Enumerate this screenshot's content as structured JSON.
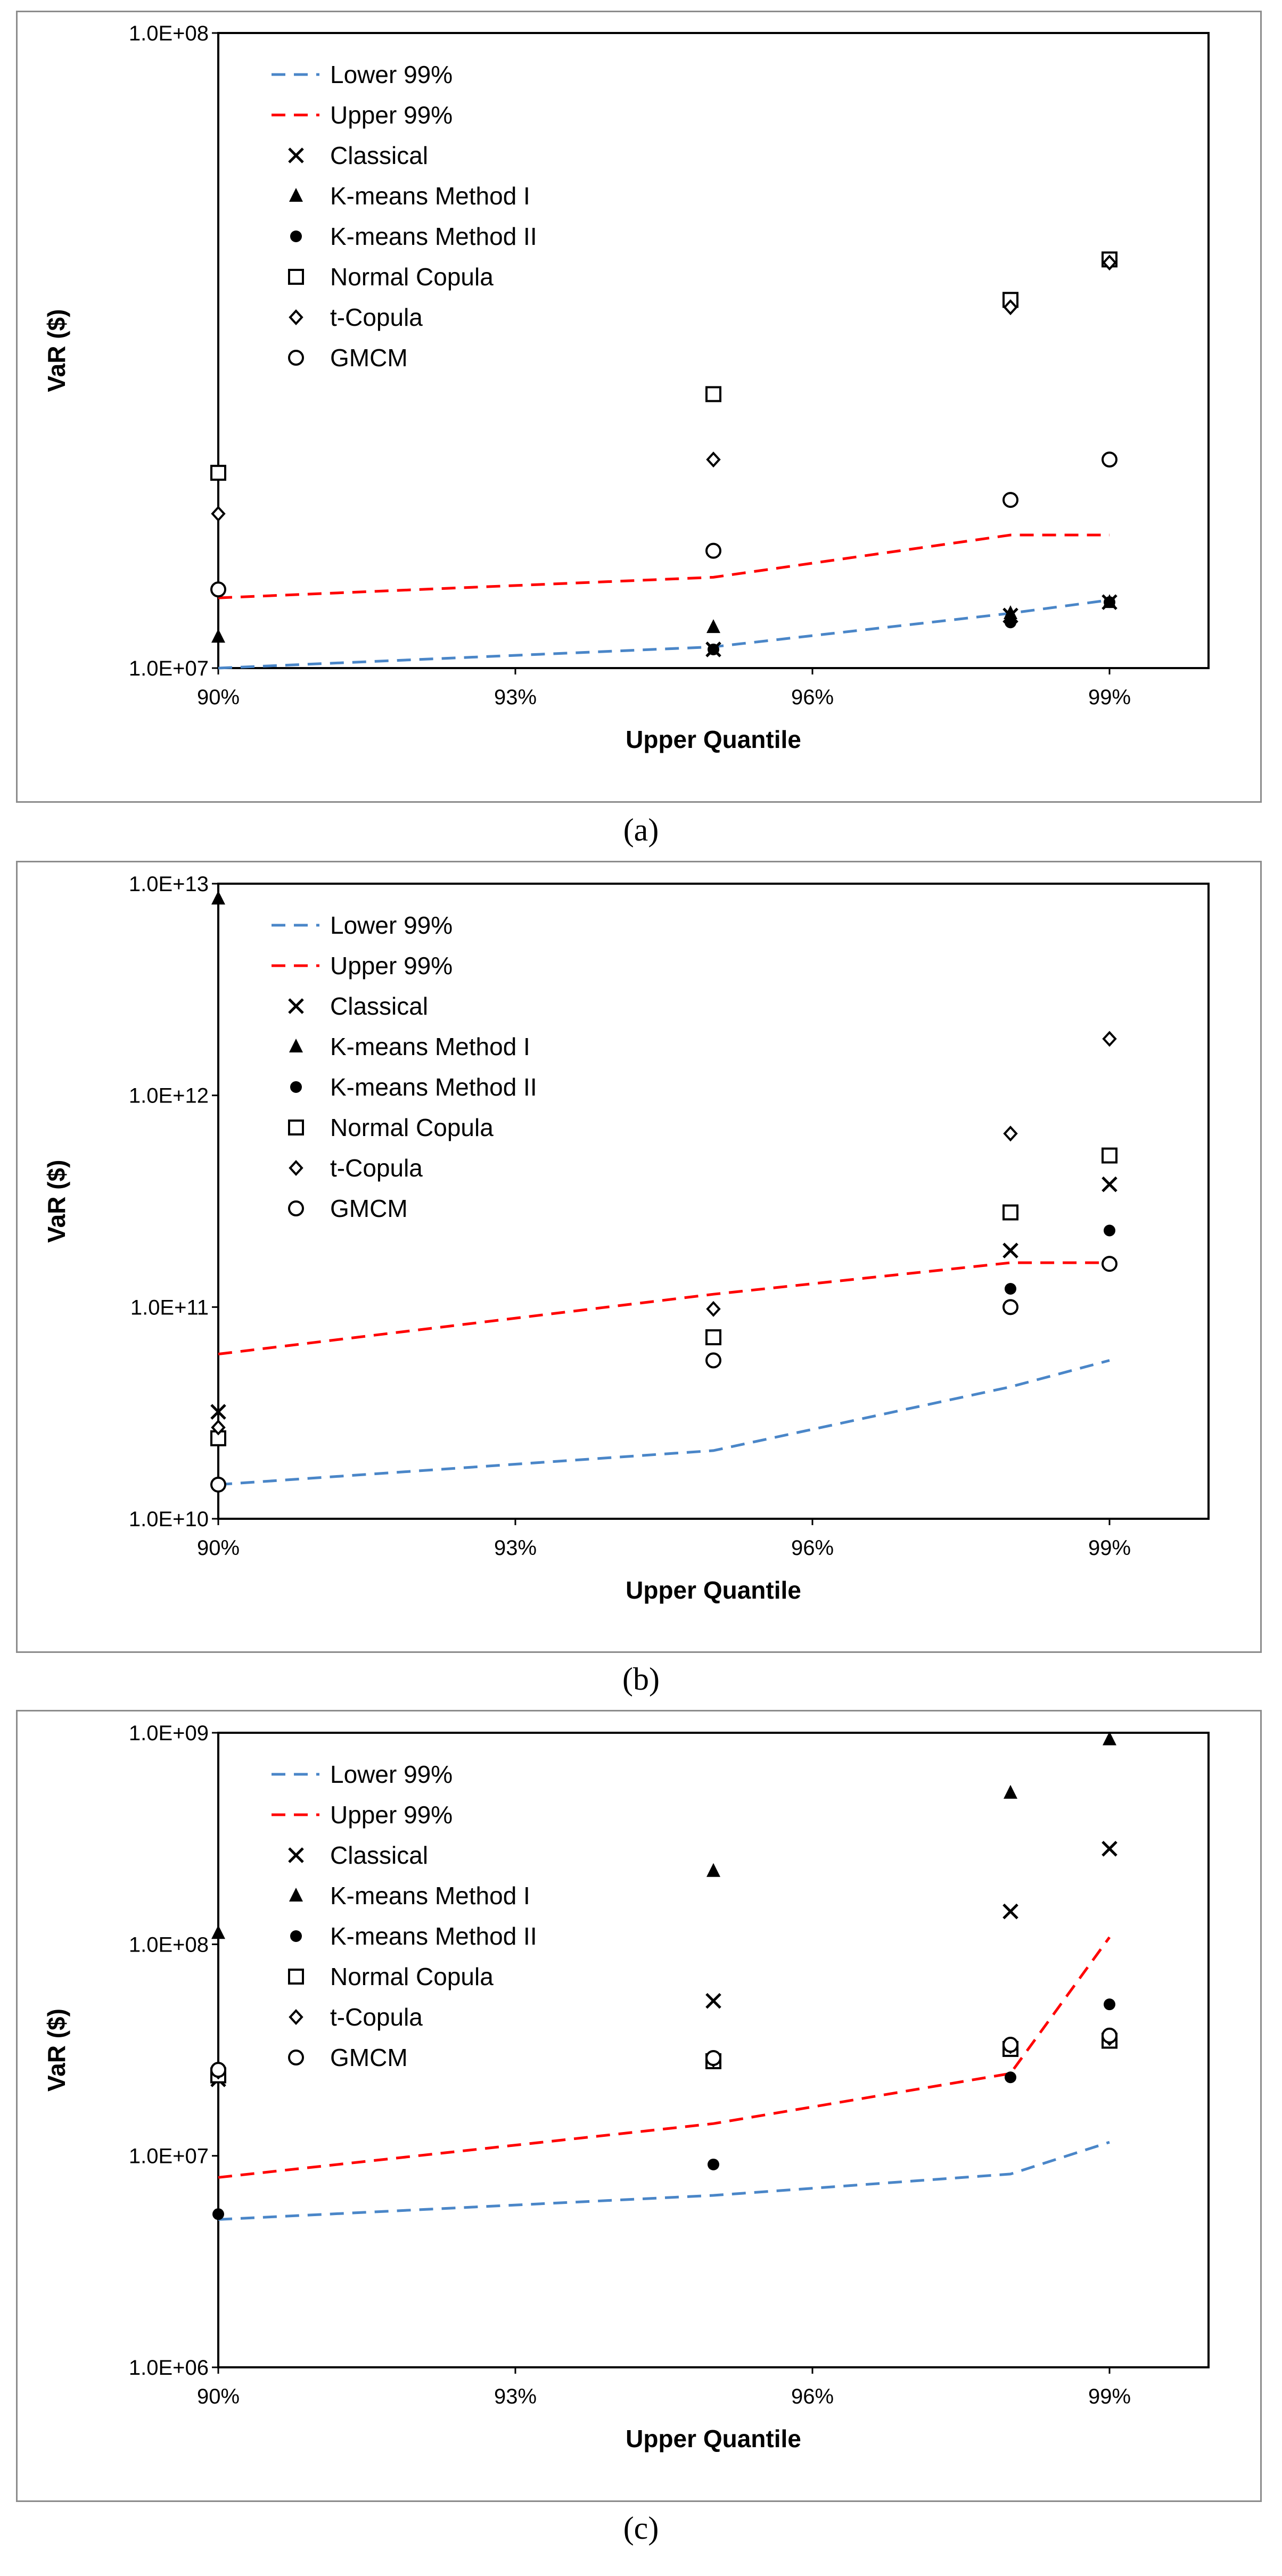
{
  "figure": {
    "captions": [
      "(a)",
      "(b)",
      "(c)"
    ]
  },
  "chart_data": [
    {
      "type": "scatter",
      "panel": "(a)",
      "xlabel": "Upper Quantile",
      "ylabel": "VaR ($)",
      "xscale": "linear",
      "yscale": "log",
      "xlim": [
        0.9,
        1.0
      ],
      "ylim": [
        10000000,
        100000000
      ],
      "x_ticks": [
        0.9,
        0.93,
        0.96,
        0.99
      ],
      "x_tick_labels": [
        "90%",
        "93%",
        "96%",
        "99%"
      ],
      "y_ticks": [
        10000000,
        100000000
      ],
      "y_tick_labels": [
        "1.0E+07",
        "1.0E+08"
      ],
      "legend_position": "top-left",
      "series": [
        {
          "name": "Lower 99%",
          "kind": "line",
          "color": "#4a86c8",
          "x": [
            0.9,
            0.95,
            0.98,
            0.99
          ],
          "y": [
            10000000,
            10800000,
            12200000,
            12800000
          ]
        },
        {
          "name": "Upper 99%",
          "kind": "line",
          "color": "#ff0000",
          "x": [
            0.9,
            0.95,
            0.98,
            0.99
          ],
          "y": [
            12900000,
            13900000,
            16200000,
            16200000
          ]
        },
        {
          "name": "Classical",
          "kind": "marker",
          "marker": "x",
          "x": [
            0.95,
            0.98,
            0.99
          ],
          "y": [
            10700000,
            12100000,
            12700000
          ]
        },
        {
          "name": "K-means Method I",
          "kind": "marker",
          "marker": "triangle",
          "x": [
            0.9,
            0.95,
            0.98,
            0.99
          ],
          "y": [
            11200000,
            11600000,
            12200000,
            12700000
          ]
        },
        {
          "name": "K-means Method II",
          "kind": "marker",
          "marker": "circle-filled",
          "x": [
            0.95,
            0.98,
            0.99
          ],
          "y": [
            10700000,
            11800000,
            12700000
          ]
        },
        {
          "name": "Normal Copula",
          "kind": "marker",
          "marker": "square",
          "x": [
            0.9,
            0.95,
            0.98,
            0.99
          ],
          "y": [
            20300000,
            27000000,
            38000000,
            44000000
          ]
        },
        {
          "name": "t-Copula",
          "kind": "marker",
          "marker": "diamond",
          "x": [
            0.9,
            0.95,
            0.98,
            0.99
          ],
          "y": [
            17500000,
            21300000,
            37000000,
            43500000
          ]
        },
        {
          "name": "GMCM",
          "kind": "marker",
          "marker": "circle-open",
          "x": [
            0.9,
            0.95,
            0.98,
            0.99
          ],
          "y": [
            13300000,
            15300000,
            18400000,
            21300000
          ]
        }
      ]
    },
    {
      "type": "scatter",
      "panel": "(b)",
      "xlabel": "Upper Quantile",
      "ylabel": "VaR ($)",
      "xscale": "linear",
      "yscale": "log",
      "xlim": [
        0.9,
        1.0
      ],
      "ylim": [
        10000000000,
        10000000000000
      ],
      "x_ticks": [
        0.9,
        0.93,
        0.96,
        0.99
      ],
      "x_tick_labels": [
        "90%",
        "93%",
        "96%",
        "99%"
      ],
      "y_ticks": [
        10000000000,
        100000000000,
        1000000000000,
        10000000000000
      ],
      "y_tick_labels": [
        "1.0E+10",
        "1.0E+11",
        "1.0E+12",
        "1.0E+13"
      ],
      "legend_position": "top-left",
      "series": [
        {
          "name": "Lower 99%",
          "kind": "line",
          "color": "#4a86c8",
          "x": [
            0.9,
            0.95,
            0.98,
            0.99
          ],
          "y": [
            14500000000,
            21000000000,
            42000000000,
            56000000000
          ]
        },
        {
          "name": "Upper 99%",
          "kind": "line",
          "color": "#ff0000",
          "x": [
            0.9,
            0.95,
            0.98,
            0.99
          ],
          "y": [
            60000000000,
            115000000000,
            162000000000,
            162000000000
          ]
        },
        {
          "name": "Classical",
          "kind": "marker",
          "marker": "x",
          "x": [
            0.9,
            0.95,
            0.98,
            0.99
          ],
          "y": [
            32000000000,
            72000000000,
            185000000000,
            380000000000
          ]
        },
        {
          "name": "K-means Method I",
          "kind": "marker",
          "marker": "triangle",
          "x": [
            0.9
          ],
          "y": [
            8500000000000
          ]
        },
        {
          "name": "K-means Method II",
          "kind": "marker",
          "marker": "circle-filled",
          "x": [
            0.9,
            0.95,
            0.98,
            0.99
          ],
          "y": [
            25000000000,
            55000000000,
            122000000000,
            230000000000
          ]
        },
        {
          "name": "Normal Copula",
          "kind": "marker",
          "marker": "square",
          "x": [
            0.9,
            0.95,
            0.98,
            0.99
          ],
          "y": [
            24000000000,
            72000000000,
            280000000000,
            520000000000
          ]
        },
        {
          "name": "t-Copula",
          "kind": "marker",
          "marker": "diamond",
          "x": [
            0.9,
            0.95,
            0.98,
            0.99
          ],
          "y": [
            27000000000,
            98000000000,
            660000000000,
            1850000000000
          ]
        },
        {
          "name": "GMCM",
          "kind": "marker",
          "marker": "circle-open",
          "x": [
            0.9,
            0.95,
            0.98,
            0.99
          ],
          "y": [
            14500000000,
            56000000000,
            100000000000,
            160000000000
          ]
        }
      ]
    },
    {
      "type": "scatter",
      "panel": "(c)",
      "xlabel": "Upper Quantile",
      "ylabel": "VaR ($)",
      "xscale": "linear",
      "yscale": "log",
      "xlim": [
        0.9,
        1.0
      ],
      "ylim": [
        1000000,
        1000000000
      ],
      "x_ticks": [
        0.9,
        0.93,
        0.96,
        0.99
      ],
      "x_tick_labels": [
        "90%",
        "93%",
        "96%",
        "99%"
      ],
      "y_ticks": [
        1000000,
        10000000,
        100000000,
        1000000000
      ],
      "y_tick_labels": [
        "1.0E+06",
        "1.0E+07",
        "1.0E+08",
        "1.0E+09"
      ],
      "legend_position": "top-left",
      "series": [
        {
          "name": "Lower 99%",
          "kind": "line",
          "color": "#4a86c8",
          "x": [
            0.9,
            0.95,
            0.98,
            0.99
          ],
          "y": [
            5000000,
            6500000,
            8200000,
            11600000
          ]
        },
        {
          "name": "Upper 99%",
          "kind": "line",
          "color": "#ff0000",
          "x": [
            0.9,
            0.95,
            0.98,
            0.99
          ],
          "y": [
            7900000,
            14200000,
            24500000,
            108000000
          ]
        },
        {
          "name": "Classical",
          "kind": "marker",
          "marker": "x",
          "x": [
            0.9,
            0.95,
            0.98,
            0.99
          ],
          "y": [
            23000000,
            54000000,
            143000000,
            283000000
          ]
        },
        {
          "name": "K-means Method I",
          "kind": "marker",
          "marker": "triangle",
          "x": [
            0.9,
            0.95,
            0.98,
            0.99
          ],
          "y": [
            113000000,
            222000000,
            520000000,
            930000000
          ]
        },
        {
          "name": "K-means Method II",
          "kind": "marker",
          "marker": "circle-filled",
          "x": [
            0.9,
            0.95,
            0.98,
            0.99
          ],
          "y": [
            5300000,
            9100000,
            23500000,
            52000000
          ]
        },
        {
          "name": "Normal Copula",
          "kind": "marker",
          "marker": "square",
          "x": [
            0.9,
            0.95,
            0.98,
            0.99
          ],
          "y": [
            24000000,
            28000000,
            32000000,
            35000000
          ]
        },
        {
          "name": "t-Copula",
          "kind": "marker",
          "marker": "diamond",
          "x": [
            0.9,
            0.95,
            0.98,
            0.99
          ],
          "y": [
            25000000,
            28500000,
            33000000,
            36000000
          ]
        },
        {
          "name": "GMCM",
          "kind": "marker",
          "marker": "circle-open",
          "x": [
            0.9,
            0.95,
            0.98,
            0.99
          ],
          "y": [
            25500000,
            29000000,
            33500000,
            37000000
          ]
        }
      ]
    }
  ]
}
